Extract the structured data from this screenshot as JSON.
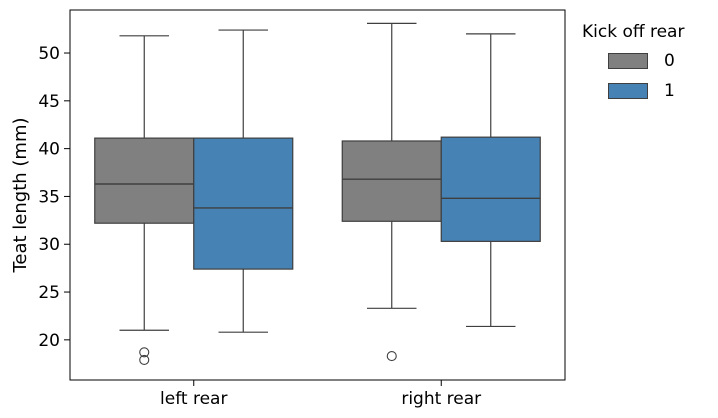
{
  "chart_data": {
    "type": "boxplot",
    "title": "",
    "xlabel": "",
    "ylabel": "Teat length (mm)",
    "categories": [
      "left rear",
      "right rear"
    ],
    "ylim": [
      15.8,
      54.5
    ],
    "yticks": [
      20,
      25,
      30,
      35,
      40,
      45,
      50
    ],
    "grid": false,
    "legend": {
      "title": "Kick off rear",
      "placement": "outside-top-right",
      "entries": [
        "0",
        "1"
      ]
    },
    "series": [
      {
        "name": "0",
        "color": "#808080",
        "boxes": [
          {
            "category": "left rear",
            "whisker_low": 21.0,
            "q1": 32.2,
            "median": 36.3,
            "q3": 41.1,
            "whisker_high": 51.8,
            "outliers": [
              18.7,
              17.9
            ]
          },
          {
            "category": "right rear",
            "whisker_low": 23.3,
            "q1": 32.4,
            "median": 36.8,
            "q3": 40.8,
            "whisker_high": 53.1,
            "outliers": [
              18.3
            ]
          }
        ]
      },
      {
        "name": "1",
        "color": "#4682b4",
        "boxes": [
          {
            "category": "left rear",
            "whisker_low": 20.8,
            "q1": 27.4,
            "median": 33.8,
            "q3": 41.1,
            "whisker_high": 52.4,
            "outliers": []
          },
          {
            "category": "right rear",
            "whisker_low": 21.4,
            "q1": 30.3,
            "median": 34.8,
            "q3": 41.2,
            "whisker_high": 52.0,
            "outliers": []
          }
        ]
      }
    ]
  }
}
